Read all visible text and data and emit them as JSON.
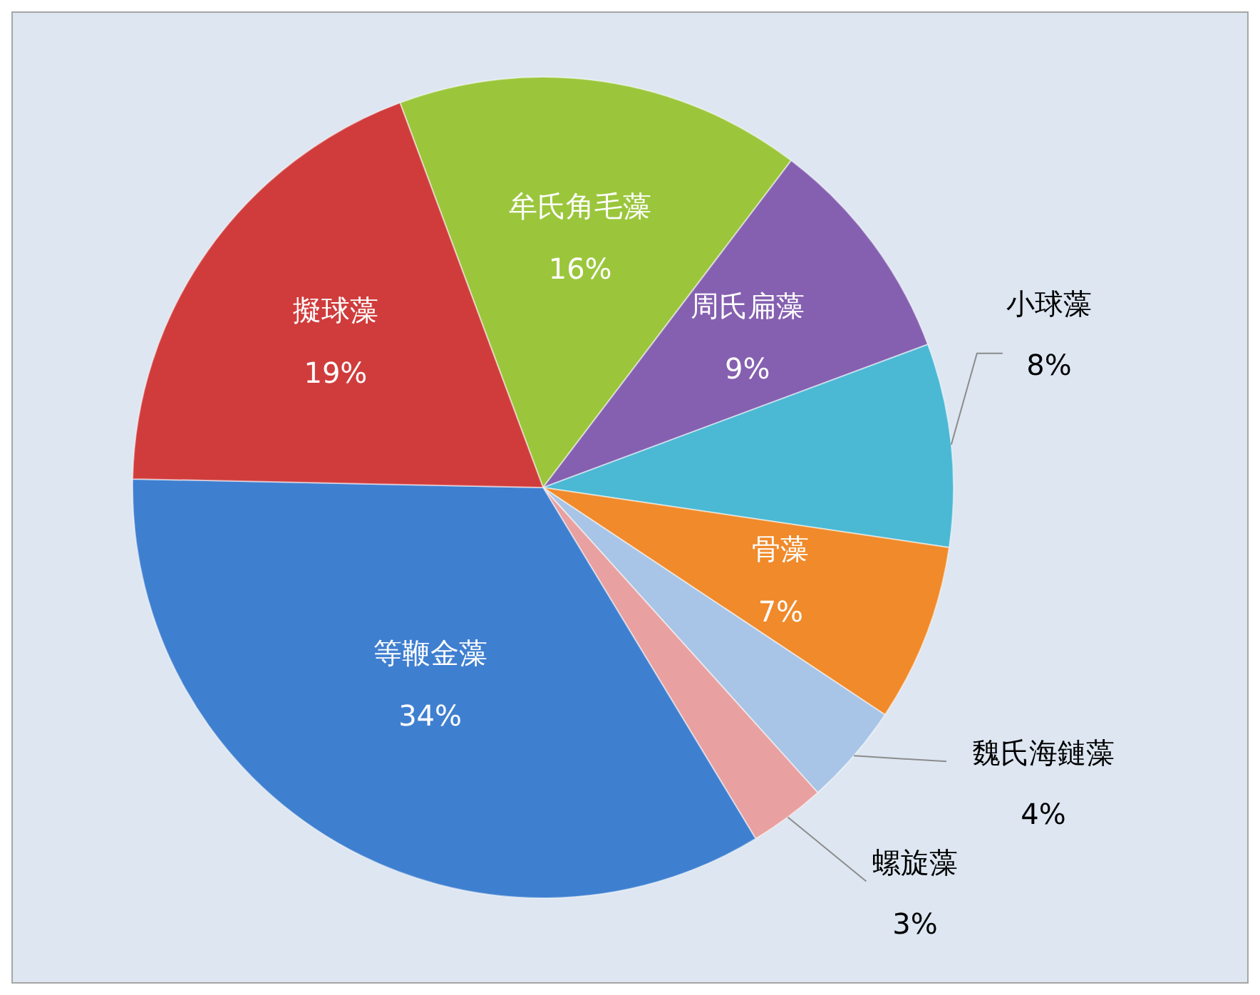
{
  "chart_data": {
    "type": "pie",
    "categories": [
      "牟氏角毛藻",
      "周氏扁藻",
      "小球藻",
      "骨藻",
      "魏氏海鏈藻",
      "螺旋藻",
      "等鞭金藻",
      "擬球藻"
    ],
    "values": [
      16,
      9,
      8,
      7,
      4,
      3,
      34,
      19
    ],
    "value_labels": [
      "16%",
      "9%",
      "8%",
      "7%",
      "4%",
      "3%",
      "34%",
      "19%"
    ],
    "colors": [
      "#9bc63c",
      "#8560b0",
      "#4bb8d4",
      "#f08a2a",
      "#a8c4e6",
      "#e8a0a0",
      "#3f7fd0",
      "#d03c3c"
    ]
  }
}
